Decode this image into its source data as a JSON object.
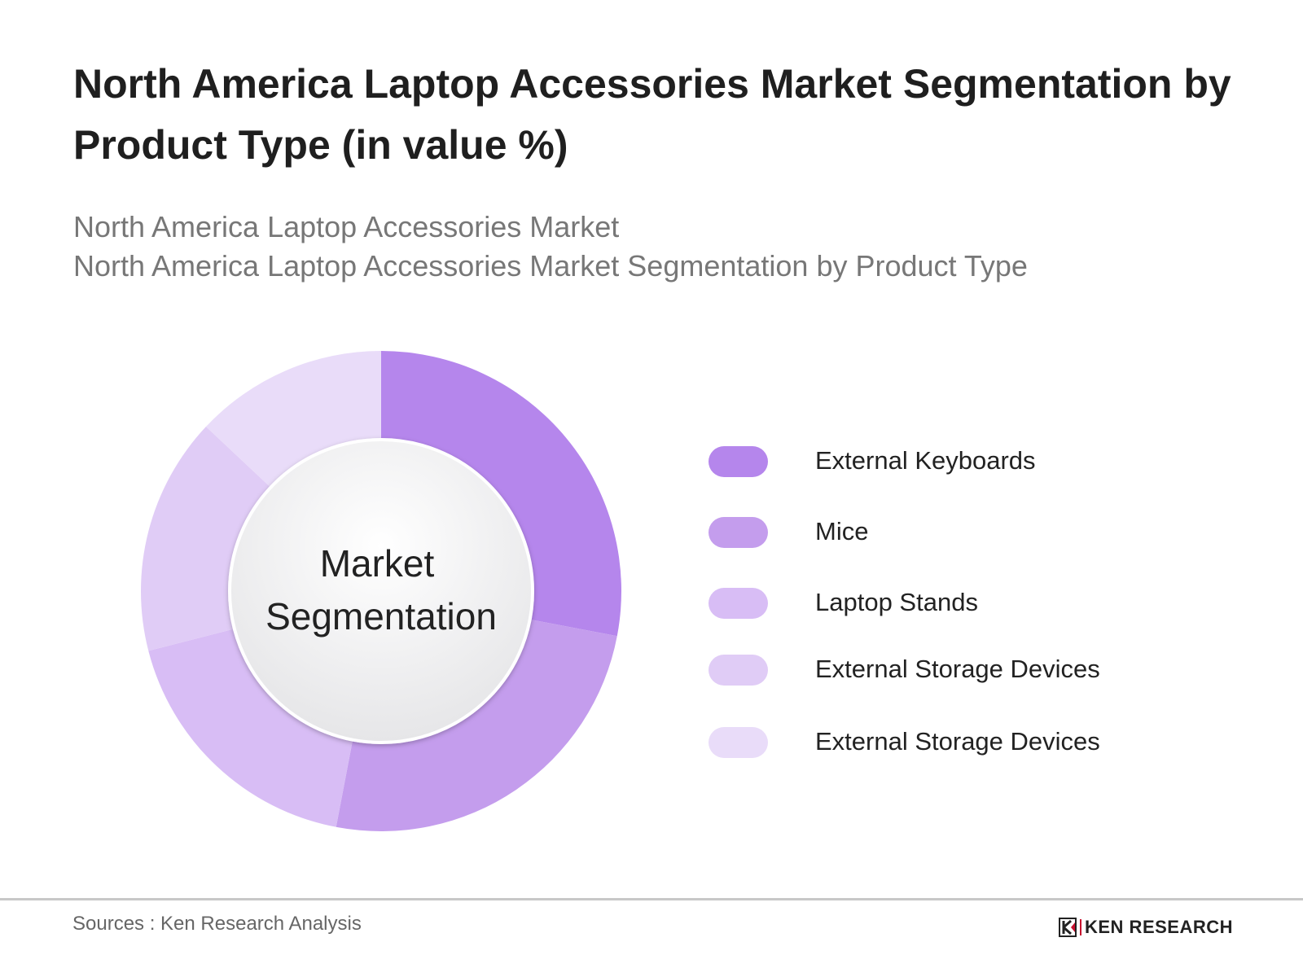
{
  "title": "North America Laptop Accessories Market Segmentation by Product Type (in value %)",
  "subtitle_1": "North America Laptop Accessories Market",
  "subtitle_2": "North America Laptop Accessories Market Segmentation by Product Type",
  "chart_data": {
    "type": "pie",
    "style": "donut",
    "center_label": [
      "Market",
      "Segmentation"
    ],
    "categories": [
      "External Keyboards",
      "Mice",
      "Laptop Stands",
      "External Storage Devices",
      "External Storage Devices"
    ],
    "values": [
      28,
      25,
      18,
      16,
      13
    ],
    "unit": "%",
    "colors": [
      "#b586ec",
      "#c49ded",
      "#d8bdf5",
      "#e0ccf6",
      "#e9dcf9"
    ],
    "legend_position": "right"
  },
  "footer": {
    "sources": "Sources : Ken Research Analysis",
    "logo_text": "KEN RESEARCH"
  }
}
